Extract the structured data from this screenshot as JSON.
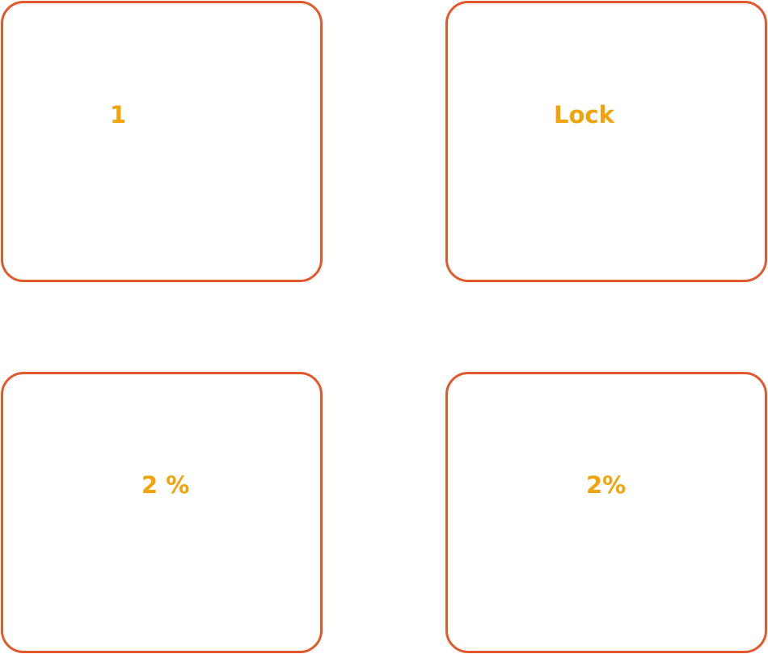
{
  "colors": {
    "border": "#e2592b",
    "label": "#f0a30a",
    "background": "#ffffff"
  },
  "tiles": [
    {
      "label": "1"
    },
    {
      "label": "Lock"
    },
    {
      "label": "2 %"
    },
    {
      "label": "2%"
    }
  ]
}
